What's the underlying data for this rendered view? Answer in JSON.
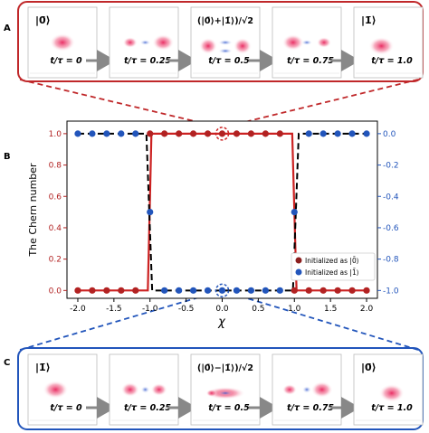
{
  "panels": {
    "a_label": "A",
    "b_label": "B",
    "c_label": "C"
  },
  "panel_a": {
    "frames": [
      {
        "state": "|0̄⟩",
        "time": "t/τ = 0"
      },
      {
        "state": "",
        "time": "t/τ = 0.25"
      },
      {
        "state": "(|0̄⟩+|1̄⟩)/√2",
        "time": "t/τ = 0.5"
      },
      {
        "state": "",
        "time": "t/τ = 0.75"
      },
      {
        "state": "|1̄⟩",
        "time": "t/τ = 1.0"
      }
    ]
  },
  "panel_c": {
    "frames": [
      {
        "state": "|1̄⟩",
        "time": "t/τ = 0"
      },
      {
        "state": "",
        "time": "t/τ = 0.25"
      },
      {
        "state": "(|0̄⟩−|1̄⟩)/√2",
        "time": "t/τ = 0.5"
      },
      {
        "state": "",
        "time": "t/τ = 0.75"
      },
      {
        "state": "|0̄⟩",
        "time": "t/τ = 1.0"
      }
    ]
  },
  "colors": {
    "red": "#b22222",
    "blue": "#2255bb",
    "black": "#000000"
  },
  "chart_data": {
    "type": "line",
    "xlabel": "χ",
    "ylabel": "The Chern number",
    "xlim": [
      -2.15,
      2.15
    ],
    "ylim_left": [
      -0.05,
      1.08
    ],
    "ylim_right": [
      -1.05,
      0.08
    ],
    "xticks": [
      "-2.0",
      "-1.5",
      "-1.0",
      "-0.5",
      "0.0",
      "0.5",
      "1.0",
      "1.5",
      "2.0"
    ],
    "yticks_left": [
      "0.0",
      "0.2",
      "0.4",
      "0.6",
      "0.8",
      "1.0"
    ],
    "yticks_right": [
      "0.0",
      "-0.2",
      "-0.4",
      "-0.6",
      "-0.8",
      "-1.0"
    ],
    "x": [
      -2.0,
      -1.8,
      -1.6,
      -1.4,
      -1.2,
      -1.0,
      -0.8,
      -0.6,
      -0.4,
      -0.2,
      0.0,
      0.2,
      0.4,
      0.6,
      0.8,
      1.0,
      1.2,
      1.4,
      1.6,
      1.8,
      2.0
    ],
    "series": [
      {
        "name": "Initialized as |0̄⟩",
        "axis": "left",
        "values": [
          0,
          0,
          0,
          0,
          0,
          1,
          1,
          1,
          1,
          1,
          1,
          1,
          1,
          1,
          1,
          0,
          0,
          0,
          0,
          0,
          0
        ]
      },
      {
        "name": "Initialized as |1̄⟩",
        "axis": "right",
        "values": [
          0,
          0,
          0,
          0,
          0,
          -0.5,
          -1,
          -1,
          -1,
          -1,
          -1,
          -1,
          -1,
          -1,
          -1,
          -0.5,
          0,
          0,
          0,
          0,
          0
        ]
      }
    ],
    "legend": "lower-right"
  }
}
